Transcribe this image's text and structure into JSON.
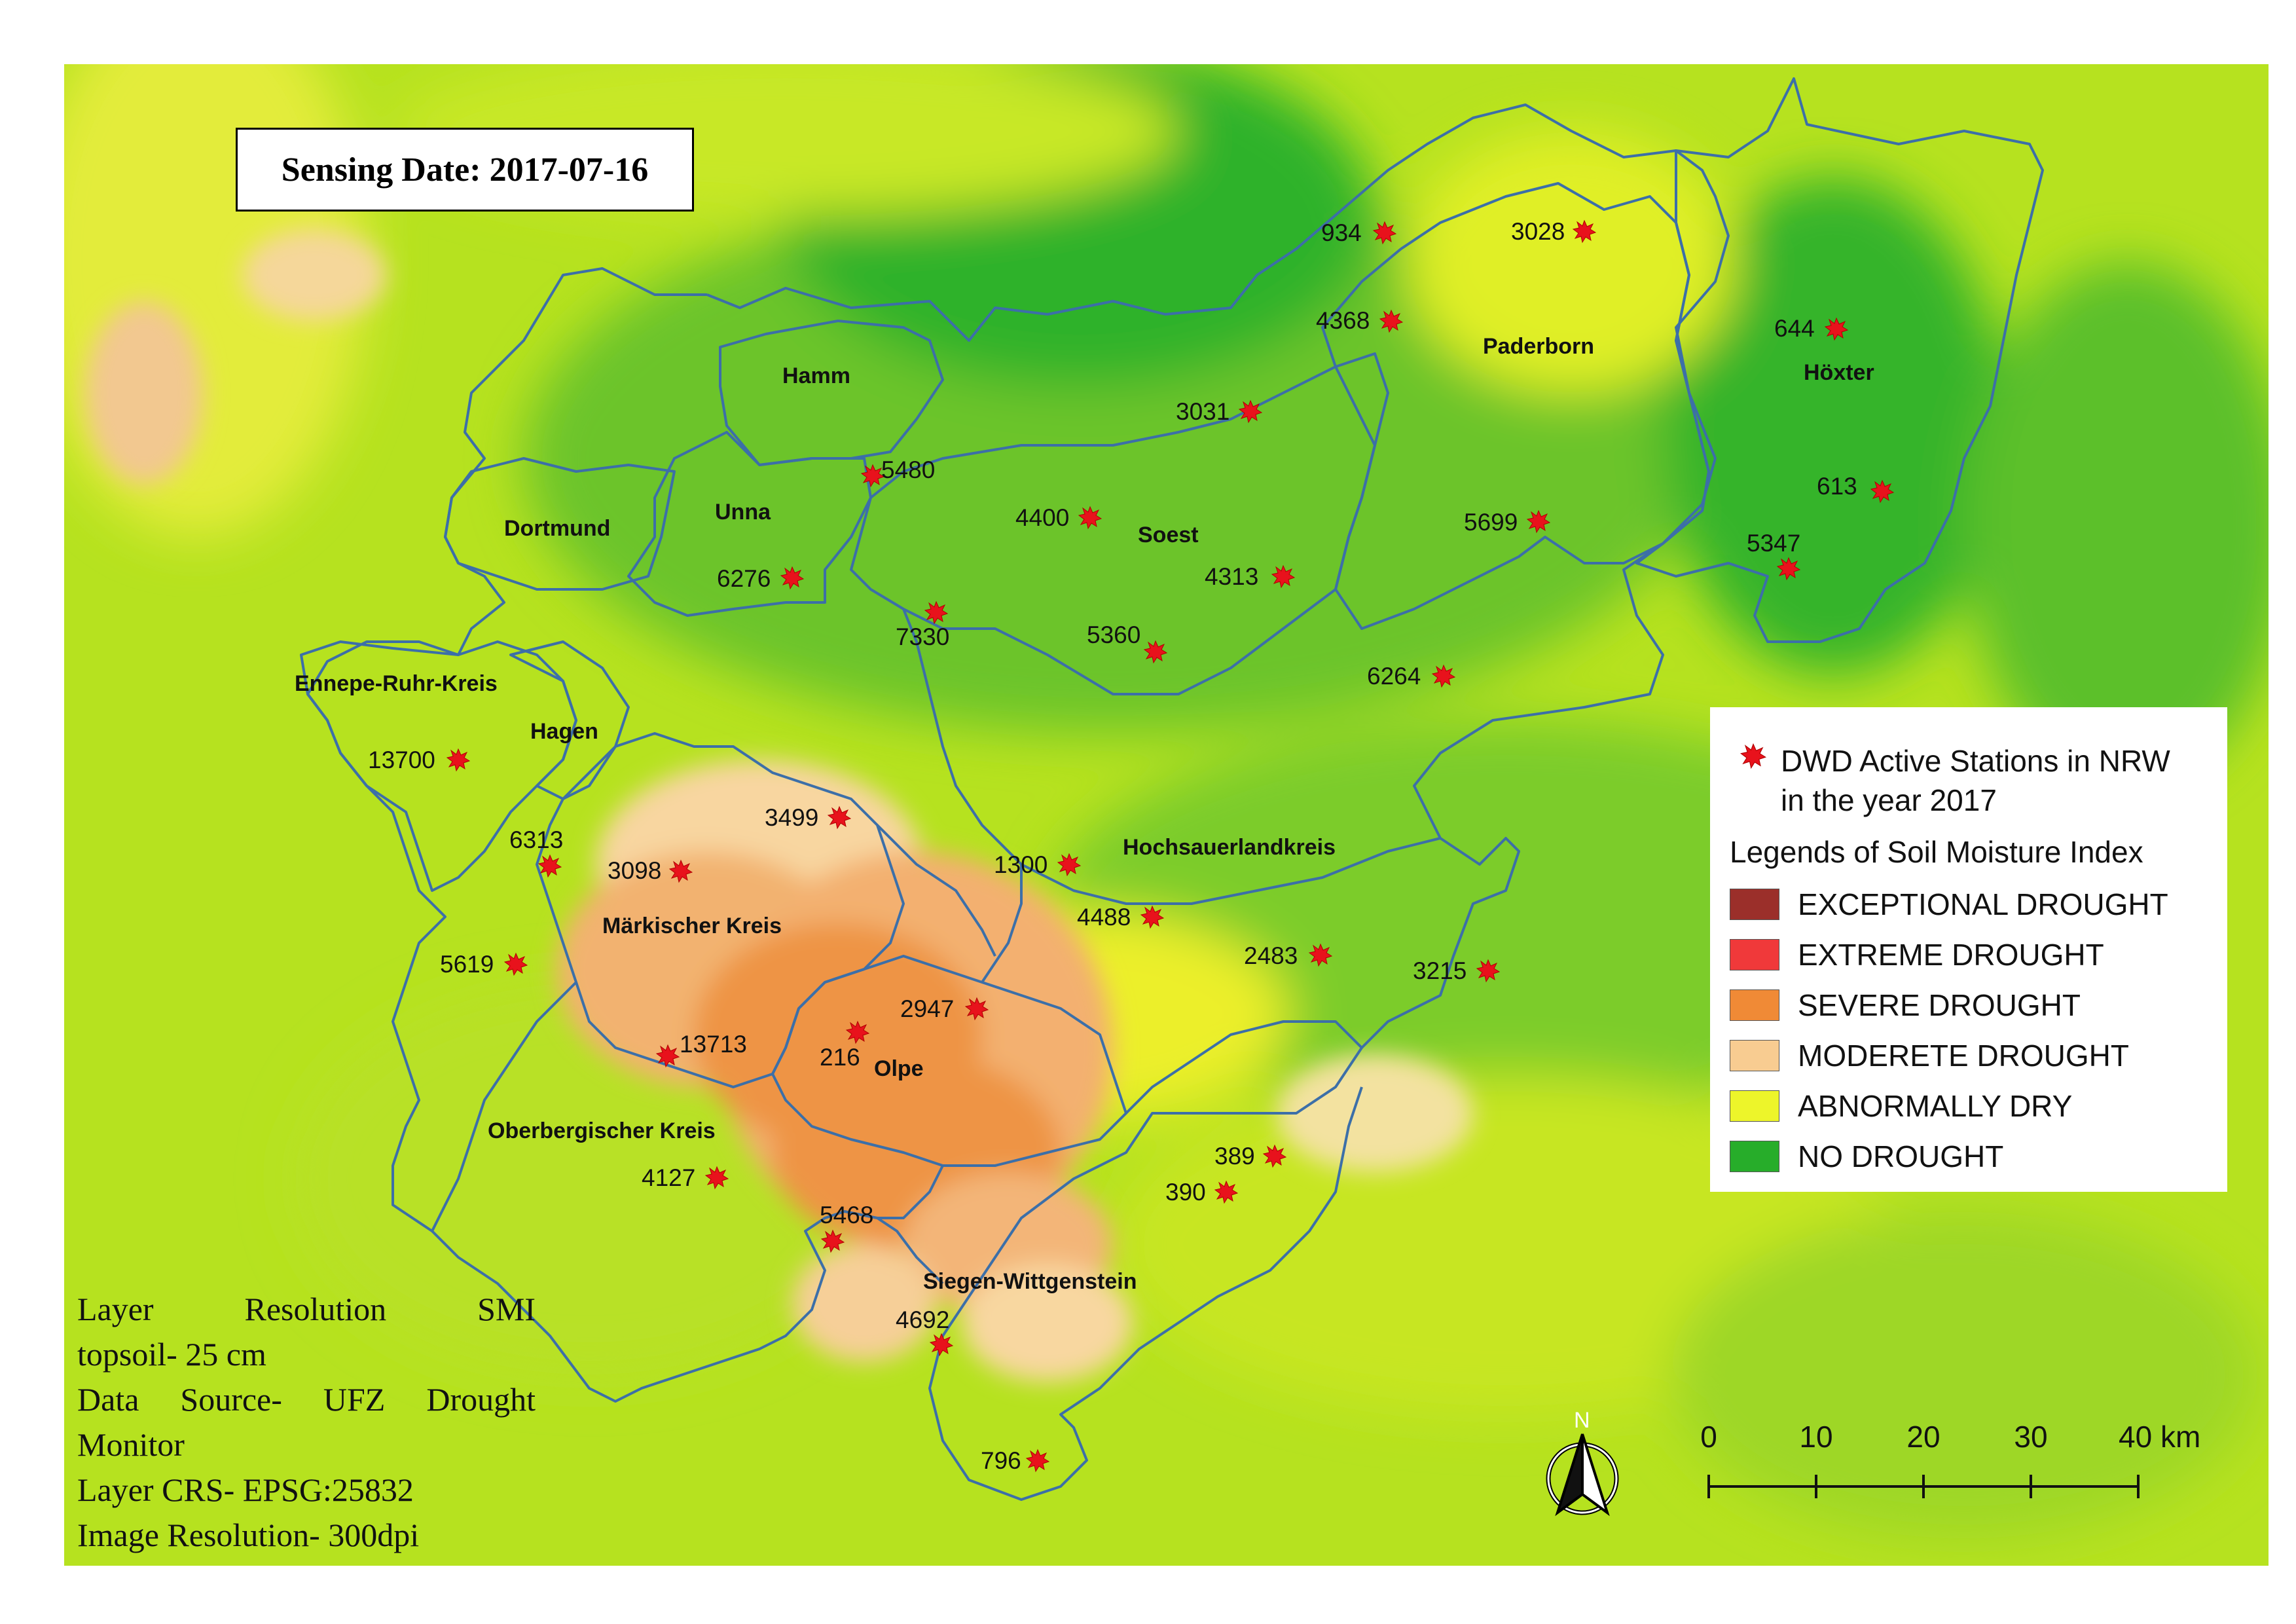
{
  "sensing_date": "Sensing Date: 2017-07-16",
  "info_lines": [
    "Layer Resolution SMI",
    "topsoil- 25 cm",
    "Data Source- UFZ Drought",
    "Monitor",
    "Layer CRS- EPSG:25832",
    "Image Resolution- 300dpi"
  ],
  "legend": {
    "station_label": "DWD Active Stations in NRW",
    "station_label_2": "in the year 2017",
    "title": "Legends of Soil Moisture Index",
    "classes": [
      {
        "label": "EXCEPTIONAL DROUGHT",
        "color": "#9b2f2a"
      },
      {
        "label": "EXTREME DROUGHT",
        "color": "#f0393a"
      },
      {
        "label": "SEVERE DROUGHT",
        "color": "#f08a36"
      },
      {
        "label": "MODERETE DROUGHT",
        "color": "#f8cc91"
      },
      {
        "label": "ABNORMALLY DRY",
        "color": "#edf52a"
      },
      {
        "label": "NO DROUGHT",
        "color": "#27ad2a"
      }
    ]
  },
  "scale": {
    "ticks": [
      "0",
      "10",
      "20",
      "30",
      "40 km"
    ]
  },
  "north_label": "N",
  "districts": [
    "Hamm",
    "Unna",
    "Dortmund",
    "Soest",
    "Paderborn",
    "Höxter",
    "Ennepe-Ruhr-Kreis",
    "Hagen",
    "Hochsauerlandkreis",
    "Märkischer Kreis",
    "Olpe",
    "Oberbergischer Kreis",
    "Siegen-Wittgenstein"
  ],
  "stations": [
    "934",
    "3028",
    "4368",
    "644",
    "3031",
    "5480",
    "4400",
    "5699",
    "613",
    "5347",
    "6276",
    "7330",
    "4313",
    "5360",
    "6264",
    "13700",
    "3499",
    "6313",
    "3098",
    "1300",
    "4488",
    "2483",
    "3215",
    "5619",
    "2947",
    "216",
    "13713",
    "389",
    "390",
    "4127",
    "5468",
    "4692",
    "796"
  ],
  "icons": {
    "station_marker": "red-star-icon",
    "north_arrow": "north-arrow-icon"
  }
}
